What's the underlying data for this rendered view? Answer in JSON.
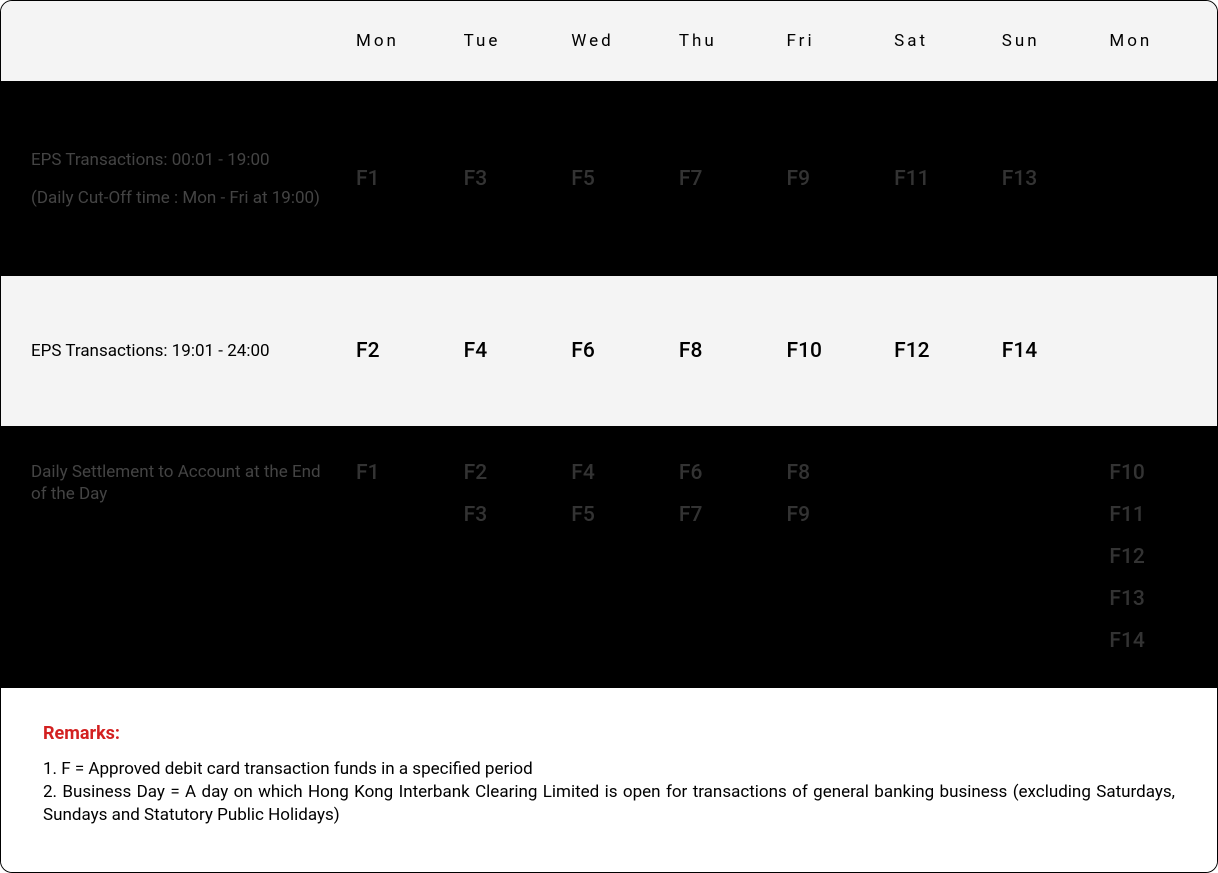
{
  "header": {
    "days": [
      "Mon",
      "Tue",
      "Wed",
      "Thu",
      "Fri",
      "Sat",
      "Sun",
      "Mon"
    ]
  },
  "rows": [
    {
      "style": "dark",
      "label_main": "EPS Transactions:  00:01 - 19:00",
      "label_sub": "(Daily Cut-Off time : Mon - Fri at 19:00)",
      "cells": [
        [
          "F1"
        ],
        [
          "F3"
        ],
        [
          "F5"
        ],
        [
          "F7"
        ],
        [
          "F9"
        ],
        [
          "F11"
        ],
        [
          "F13"
        ],
        []
      ]
    },
    {
      "style": "light",
      "label_main": "EPS Transactions: 19:01 - 24:00",
      "label_sub": "",
      "cells": [
        [
          "F2"
        ],
        [
          "F4"
        ],
        [
          "F6"
        ],
        [
          "F8"
        ],
        [
          "F10"
        ],
        [
          "F12"
        ],
        [
          "F14"
        ],
        []
      ]
    },
    {
      "style": "dark",
      "label_main": "Daily Settlement to Account at the End of the Day",
      "label_sub": "",
      "cells": [
        [
          "F1"
        ],
        [
          "F2",
          "F3"
        ],
        [
          "F4",
          "F5"
        ],
        [
          "F6",
          "F7"
        ],
        [
          "F8",
          "F9"
        ],
        [],
        [],
        [
          "F10",
          "F11",
          "F12",
          "F13",
          "F14"
        ]
      ]
    }
  ],
  "remarks": {
    "title": "Remarks:",
    "lines": [
      "1. F = Approved debit card transaction funds in a specified period",
      "2. Business Day = A day on which Hong Kong Interbank Clearing Limited is open for transactions of general banking business (excluding Saturdays, Sundays and Statutory Public Holidays)"
    ]
  },
  "colors": {
    "dark_bg": "#000000",
    "light_bg": "#f4f4f4",
    "remarks_title": "#d32020",
    "border": "#000000"
  }
}
